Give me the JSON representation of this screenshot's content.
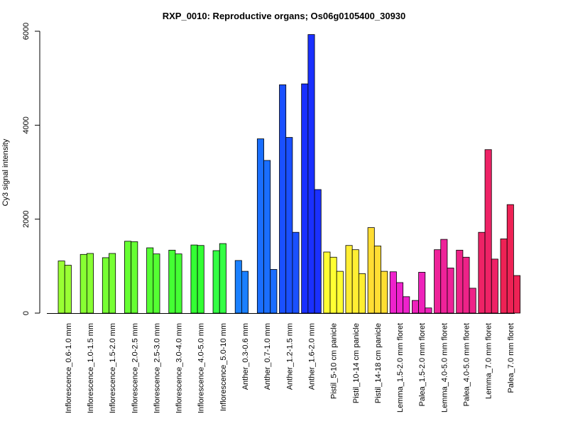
{
  "chart_data": {
    "type": "bar",
    "title": "RXP_0010: Reproductive organs; Os06g0105400_30930",
    "ylabel": "Cy3 signal intensity",
    "xlabel": "",
    "ylim": [
      0,
      6000
    ],
    "yticks": [
      0,
      2000,
      4000,
      6000
    ],
    "grid": false,
    "categories": [
      "Inflorescence_0.6-1.0 mm",
      "Inflorescence_1.0-1.5 mm",
      "Inflorescence_1.5-2.0 mm",
      "Inflorescence_2.0-2.5 mm",
      "Inflorescence_2.5-3.0 mm",
      "Inflorescence_3.0-4.0 mm",
      "Inflorescence_4.0-5.0 mm",
      "Inflorescence_5.0-10 mm",
      "Anther_0.3-0.6 mm",
      "Anther_0.7-1.0 mm",
      "Anther_1.2-1.5 mm",
      "Anther_1.6-2.0 mm",
      "Pistil_5-10 cm panicle",
      "Pistil_10-14 cm panicle",
      "Pistil_14-18 cm panicle",
      "Lemma_1.5-2.0 mm floret",
      "Palea_1.5-2.0 mm floret",
      "Lemma_4.0-5.0 mm floret",
      "Palea_4.0-5.0 mm floret",
      "Lemma_7.0 mm floret",
      "Palea_7.0 mm floret"
    ],
    "groups": [
      {
        "color": "#99ff33",
        "values": [
          1110,
          1020
        ]
      },
      {
        "color": "#88ff33",
        "values": [
          1250,
          1270
        ]
      },
      {
        "color": "#77ff33",
        "values": [
          1180,
          1270
        ]
      },
      {
        "color": "#66ff33",
        "values": [
          1530,
          1520
        ]
      },
      {
        "color": "#55ff33",
        "values": [
          1390,
          1260
        ]
      },
      {
        "color": "#44ff33",
        "values": [
          1340,
          1260
        ]
      },
      {
        "color": "#33ff33",
        "values": [
          1450,
          1440
        ]
      },
      {
        "color": "#33ff44",
        "values": [
          1330,
          1480
        ]
      },
      {
        "color": "#1a80ff",
        "values": [
          1120,
          890
        ]
      },
      {
        "color": "#1a6eff",
        "values": [
          3710,
          3250,
          930
        ]
      },
      {
        "color": "#1a50ff",
        "values": [
          4860,
          3740,
          1720
        ]
      },
      {
        "color": "#1a30ff",
        "values": [
          4880,
          5930,
          2630
        ]
      },
      {
        "color": "#ffff33",
        "values": [
          1300,
          1190,
          890
        ]
      },
      {
        "color": "#ffee33",
        "values": [
          1440,
          1350,
          840
        ]
      },
      {
        "color": "#ffdd33",
        "values": [
          1820,
          1430,
          890
        ]
      },
      {
        "color": "#ee22cc",
        "values": [
          880,
          650,
          350
        ]
      },
      {
        "color": "#ee22bb",
        "values": [
          270,
          870,
          110
        ]
      },
      {
        "color": "#ee2299",
        "values": [
          1350,
          1570,
          960
        ]
      },
      {
        "color": "#ee2288",
        "values": [
          1340,
          1190,
          530
        ]
      },
      {
        "color": "#ee2266",
        "values": [
          1720,
          3480,
          1150
        ]
      },
      {
        "color": "#ee2255",
        "values": [
          1580,
          2310,
          800
        ]
      }
    ]
  }
}
